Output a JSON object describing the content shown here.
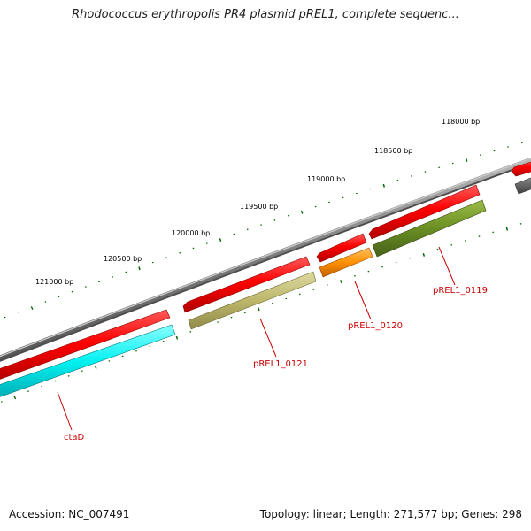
{
  "title": "Rhodococcus erythropolis PR4 plasmid pREL1, complete sequenc...",
  "footer": {
    "accession_label": "Accession:",
    "accession": "NC_007491",
    "topology_label": "Topology:",
    "topology": "linear",
    "length_label": "Length:",
    "length": "271,577 bp",
    "genes_label": "Genes:",
    "genes": "298"
  },
  "scale_labels": [
    "118000 bp",
    "118500 bp",
    "119000 bp",
    "119500 bp",
    "120000 bp",
    "120500 bp",
    "121000 bp"
  ],
  "genes": [
    {
      "name": "pREL1_0119",
      "color": "#6b8e23"
    },
    {
      "name": "pREL1_0120",
      "color": "#ff8c00"
    },
    {
      "name": "pREL1_0121",
      "color": "#bdb76b"
    },
    {
      "name": "ctaD",
      "color": "#00ffff"
    }
  ],
  "colors": {
    "backbone": "#808080",
    "cds": "#ff0000",
    "tick": "#006400",
    "label": "#cc0000",
    "unnamed_gene": "#696969"
  }
}
